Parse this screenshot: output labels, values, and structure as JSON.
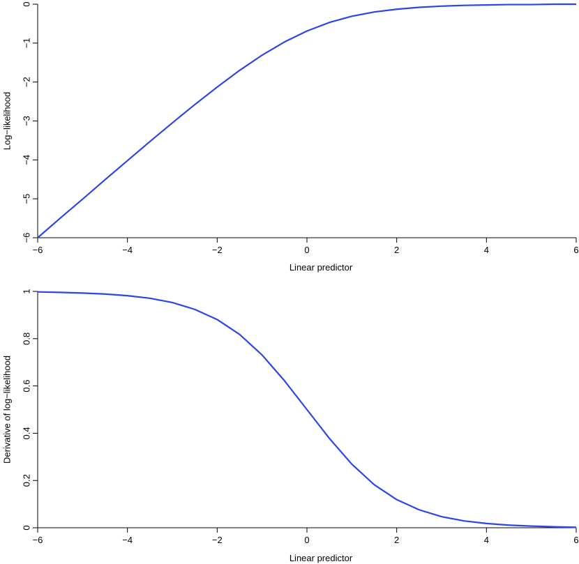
{
  "chart_data": [
    {
      "type": "line",
      "title": "",
      "xlabel": "Linear predictor",
      "ylabel": "Log−likelihood",
      "xlim": [
        -6,
        6
      ],
      "ylim": [
        -6,
        0
      ],
      "xticks": [
        -6,
        -4,
        -2,
        0,
        2,
        4,
        6
      ],
      "xtick_labels": [
        "−6",
        "−4",
        "−2",
        "0",
        "2",
        "4",
        "6"
      ],
      "yticks": [
        -6,
        -5,
        -4,
        -3,
        -2,
        -1,
        0
      ],
      "ytick_labels": [
        "−6",
        "−5",
        "−4",
        "−3",
        "−2",
        "−1",
        "0"
      ],
      "grid": false,
      "color": "#2b45e8",
      "series": [
        {
          "x": [
            -6,
            -5.5,
            -5,
            -4.5,
            -4,
            -3.5,
            -3,
            -2.5,
            -2,
            -1.5,
            -1,
            -0.5,
            0,
            0.5,
            1,
            1.5,
            2,
            2.5,
            3,
            3.5,
            4,
            4.5,
            5,
            5.5,
            6
          ],
          "values": [
            -6.0,
            -5.5,
            -5.01,
            -4.51,
            -4.02,
            -3.53,
            -3.05,
            -2.58,
            -2.13,
            -1.7,
            -1.31,
            -0.97,
            -0.69,
            -0.47,
            -0.31,
            -0.2,
            -0.13,
            -0.08,
            -0.05,
            -0.03,
            -0.02,
            -0.01,
            -0.01,
            0.0,
            0.0
          ]
        }
      ]
    },
    {
      "type": "line",
      "title": "",
      "xlabel": "Linear predictor",
      "ylabel": "Derivative of log−likelihood",
      "xlim": [
        -6,
        6
      ],
      "ylim": [
        0,
        1
      ],
      "xticks": [
        -6,
        -4,
        -2,
        0,
        2,
        4,
        6
      ],
      "xtick_labels": [
        "−6",
        "−4",
        "−2",
        "0",
        "2",
        "4",
        "6"
      ],
      "yticks": [
        0,
        0.2,
        0.4,
        0.6,
        0.8,
        1
      ],
      "ytick_labels": [
        "0",
        "0.2",
        "0.4",
        "0.6",
        "0.8",
        "1"
      ],
      "grid": false,
      "color": "#2b45e8",
      "series": [
        {
          "x": [
            -6,
            -5.5,
            -5,
            -4.5,
            -4,
            -3.5,
            -3,
            -2.5,
            -2,
            -1.5,
            -1,
            -0.5,
            0,
            0.5,
            1,
            1.5,
            2,
            2.5,
            3,
            3.5,
            4,
            4.5,
            5,
            5.5,
            6
          ],
          "values": [
            0.998,
            0.996,
            0.993,
            0.989,
            0.982,
            0.971,
            0.953,
            0.924,
            0.881,
            0.818,
            0.731,
            0.622,
            0.5,
            0.378,
            0.269,
            0.182,
            0.119,
            0.076,
            0.047,
            0.029,
            0.018,
            0.011,
            0.007,
            0.004,
            0.002
          ]
        }
      ]
    }
  ]
}
